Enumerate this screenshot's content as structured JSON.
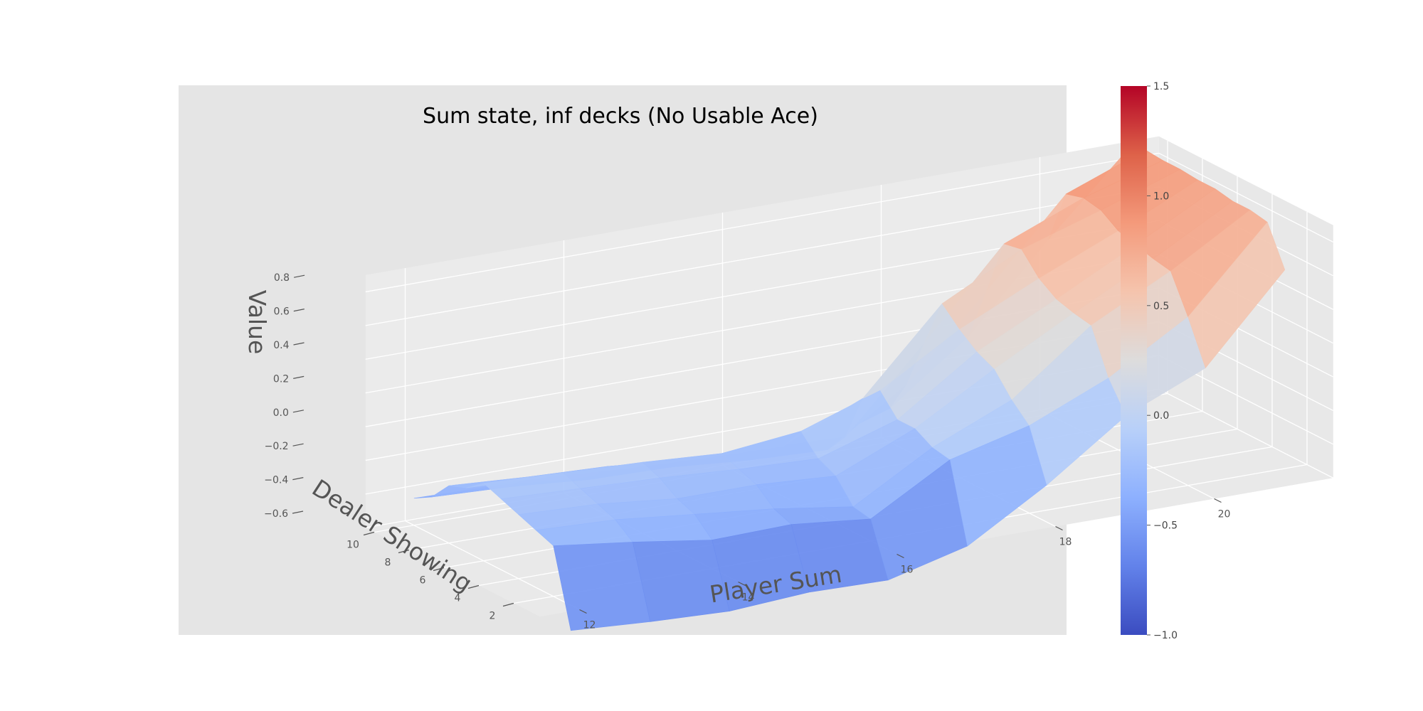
{
  "chart_data": {
    "type": "surface3d",
    "title": "Sum state, inf decks (No Usable Ace)",
    "xlabel": "Player Sum",
    "ylabel": "Dealer Showing",
    "zlabel": "Value",
    "x": [
      12,
      13,
      14,
      15,
      16,
      17,
      18,
      19,
      20,
      21
    ],
    "y": [
      1,
      2,
      3,
      4,
      5,
      6,
      7,
      8,
      9,
      10
    ],
    "x_ticks": [
      12,
      14,
      16,
      18,
      20
    ],
    "y_ticks": [
      2,
      4,
      6,
      8,
      10
    ],
    "z_ticks": [
      -0.6,
      -0.4,
      -0.2,
      0.0,
      0.2,
      0.4,
      0.6,
      0.8
    ],
    "z_tick_labels": [
      "−0.6",
      "−0.4",
      "−0.2",
      "0.0",
      "0.2",
      "0.4",
      "0.6",
      "0.8"
    ],
    "zlim": [
      -0.6,
      0.9
    ],
    "values": [
      [
        -0.75,
        -0.78,
        -0.8,
        -0.77,
        -0.78,
        -0.66,
        -0.38,
        -0.05,
        0.15,
        0.65
      ],
      [
        -0.3,
        -0.36,
        -0.43,
        -0.42,
        -0.47,
        -0.2,
        -0.08,
        0.12,
        0.4,
        0.88
      ],
      [
        -0.26,
        -0.28,
        -0.33,
        -0.38,
        -0.45,
        -0.18,
        0.02,
        0.38,
        0.62,
        0.9
      ],
      [
        -0.22,
        -0.24,
        -0.29,
        -0.29,
        -0.32,
        -0.12,
        0.15,
        0.4,
        0.64,
        0.9
      ],
      [
        -0.18,
        -0.2,
        -0.22,
        -0.25,
        -0.27,
        -0.12,
        0.2,
        0.43,
        0.67,
        0.92
      ],
      [
        -0.14,
        -0.16,
        -0.18,
        -0.21,
        -0.16,
        0.0,
        0.28,
        0.5,
        0.7,
        0.92
      ],
      [
        -0.22,
        -0.24,
        -0.27,
        -0.29,
        -0.3,
        -0.1,
        0.38,
        0.62,
        0.77,
        0.93
      ],
      [
        -0.26,
        -0.29,
        -0.31,
        -0.35,
        -0.36,
        -0.38,
        0.1,
        0.6,
        0.79,
        0.93
      ],
      [
        -0.38,
        -0.4,
        -0.44,
        -0.45,
        -0.49,
        -0.51,
        -0.2,
        0.27,
        0.76,
        0.94
      ],
      [
        -0.44,
        -0.45,
        -0.49,
        -0.51,
        -0.53,
        -0.55,
        -0.4,
        -0.05,
        0.44,
        0.89
      ]
    ],
    "colormap": "coolwarm",
    "colorbar": {
      "min": -1.0,
      "max": 1.5,
      "ticks": [
        -1.0,
        -0.5,
        0.0,
        0.5,
        1.0,
        1.5
      ],
      "tick_labels": [
        "−1.0",
        "−0.5",
        "0.0",
        "0.5",
        "1.0",
        "1.5"
      ]
    },
    "grid": true,
    "legend": "colorbar-right"
  },
  "colors": {
    "axes_background": "#e5e5e5",
    "pane": "#ebebeb",
    "grid": "#ffffff"
  }
}
